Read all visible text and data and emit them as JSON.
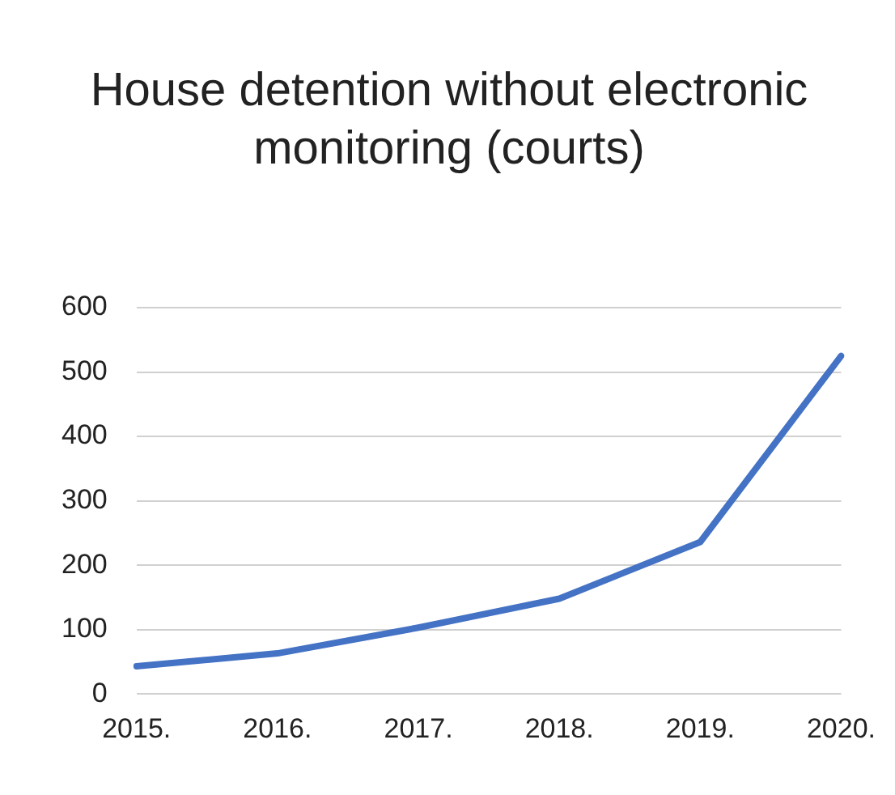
{
  "chart_data": {
    "type": "line",
    "title": "House detention without electronic monitoring (courts)",
    "categories": [
      "2015.",
      "2016.",
      "2017.",
      "2018.",
      "2019.",
      "2020."
    ],
    "series": [
      {
        "color": "#4472c4",
        "values": [
          43,
          63,
          103,
          148,
          236,
          525
        ]
      }
    ],
    "ylim": [
      0,
      600
    ],
    "yticks": [
      0,
      100,
      200,
      300,
      400,
      500,
      600
    ],
    "grid": "y",
    "legend": false,
    "marker": "none"
  }
}
